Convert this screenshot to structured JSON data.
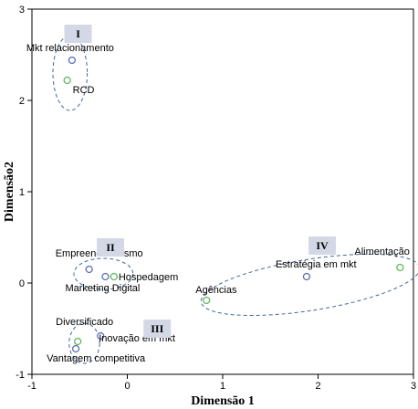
{
  "chart_data": {
    "type": "scatter",
    "xlabel": "Dimensão 1",
    "ylabel": "Dimensão2",
    "xlim": [
      -1,
      3
    ],
    "ylim": [
      -1,
      3
    ],
    "xticks": [
      "-1",
      "0",
      "1",
      "2",
      "3"
    ],
    "yticks": [
      "-1",
      "0",
      "1",
      "2",
      "3"
    ],
    "grid": false,
    "colors": {
      "blue": "#5b6db3",
      "green": "#5cb85c",
      "ellipse": "#44689a",
      "box": "#d4d8e6"
    },
    "points": [
      {
        "label": "Mkt relacionamento",
        "x": -0.58,
        "y": 2.44,
        "color": "blue"
      },
      {
        "label": "RCD",
        "x": -0.63,
        "y": 2.22,
        "color": "green"
      },
      {
        "label": "Empreendedorismo",
        "x": -0.4,
        "y": 0.15,
        "color": "blue"
      },
      {
        "label": "Hospedagem",
        "x": -0.14,
        "y": 0.07,
        "color": "green"
      },
      {
        "label": "Marketing Digital",
        "x": -0.23,
        "y": 0.07,
        "color": "blue"
      },
      {
        "label": "Diversificado",
        "x": -0.52,
        "y": -0.64,
        "color": "green"
      },
      {
        "label": "Inovação em mkt",
        "x": -0.28,
        "y": -0.58,
        "color": "blue"
      },
      {
        "label": "Vantagem competitiva",
        "x": -0.54,
        "y": -0.72,
        "color": "blue"
      },
      {
        "label": "Agências",
        "x": 0.83,
        "y": -0.19,
        "color": "green"
      },
      {
        "label": "Estratégia em mkt",
        "x": 1.88,
        "y": 0.07,
        "color": "blue"
      },
      {
        "label": "Alimentação",
        "x": 2.86,
        "y": 0.17,
        "color": "green"
      }
    ],
    "groups": [
      {
        "label": "I",
        "cx": -0.6,
        "cy": 2.3,
        "rx": 0.18,
        "ry": 0.41,
        "box_x": -0.66,
        "box_y": 2.83
      },
      {
        "label": "II",
        "cx": -0.25,
        "cy": 0.1,
        "rx": 0.31,
        "ry": 0.17,
        "box_x": -0.32,
        "box_y": 0.49
      },
      {
        "label": "III",
        "cx": -0.45,
        "cy": -0.66,
        "rx": 0.16,
        "ry": 0.22,
        "box_x": 0.17,
        "box_y": -0.4
      },
      {
        "label": "IV",
        "cx": 1.92,
        "cy": -0.02,
        "rx": 1.16,
        "ry": 0.28,
        "box_x": 1.9,
        "box_y": 0.51
      }
    ]
  }
}
